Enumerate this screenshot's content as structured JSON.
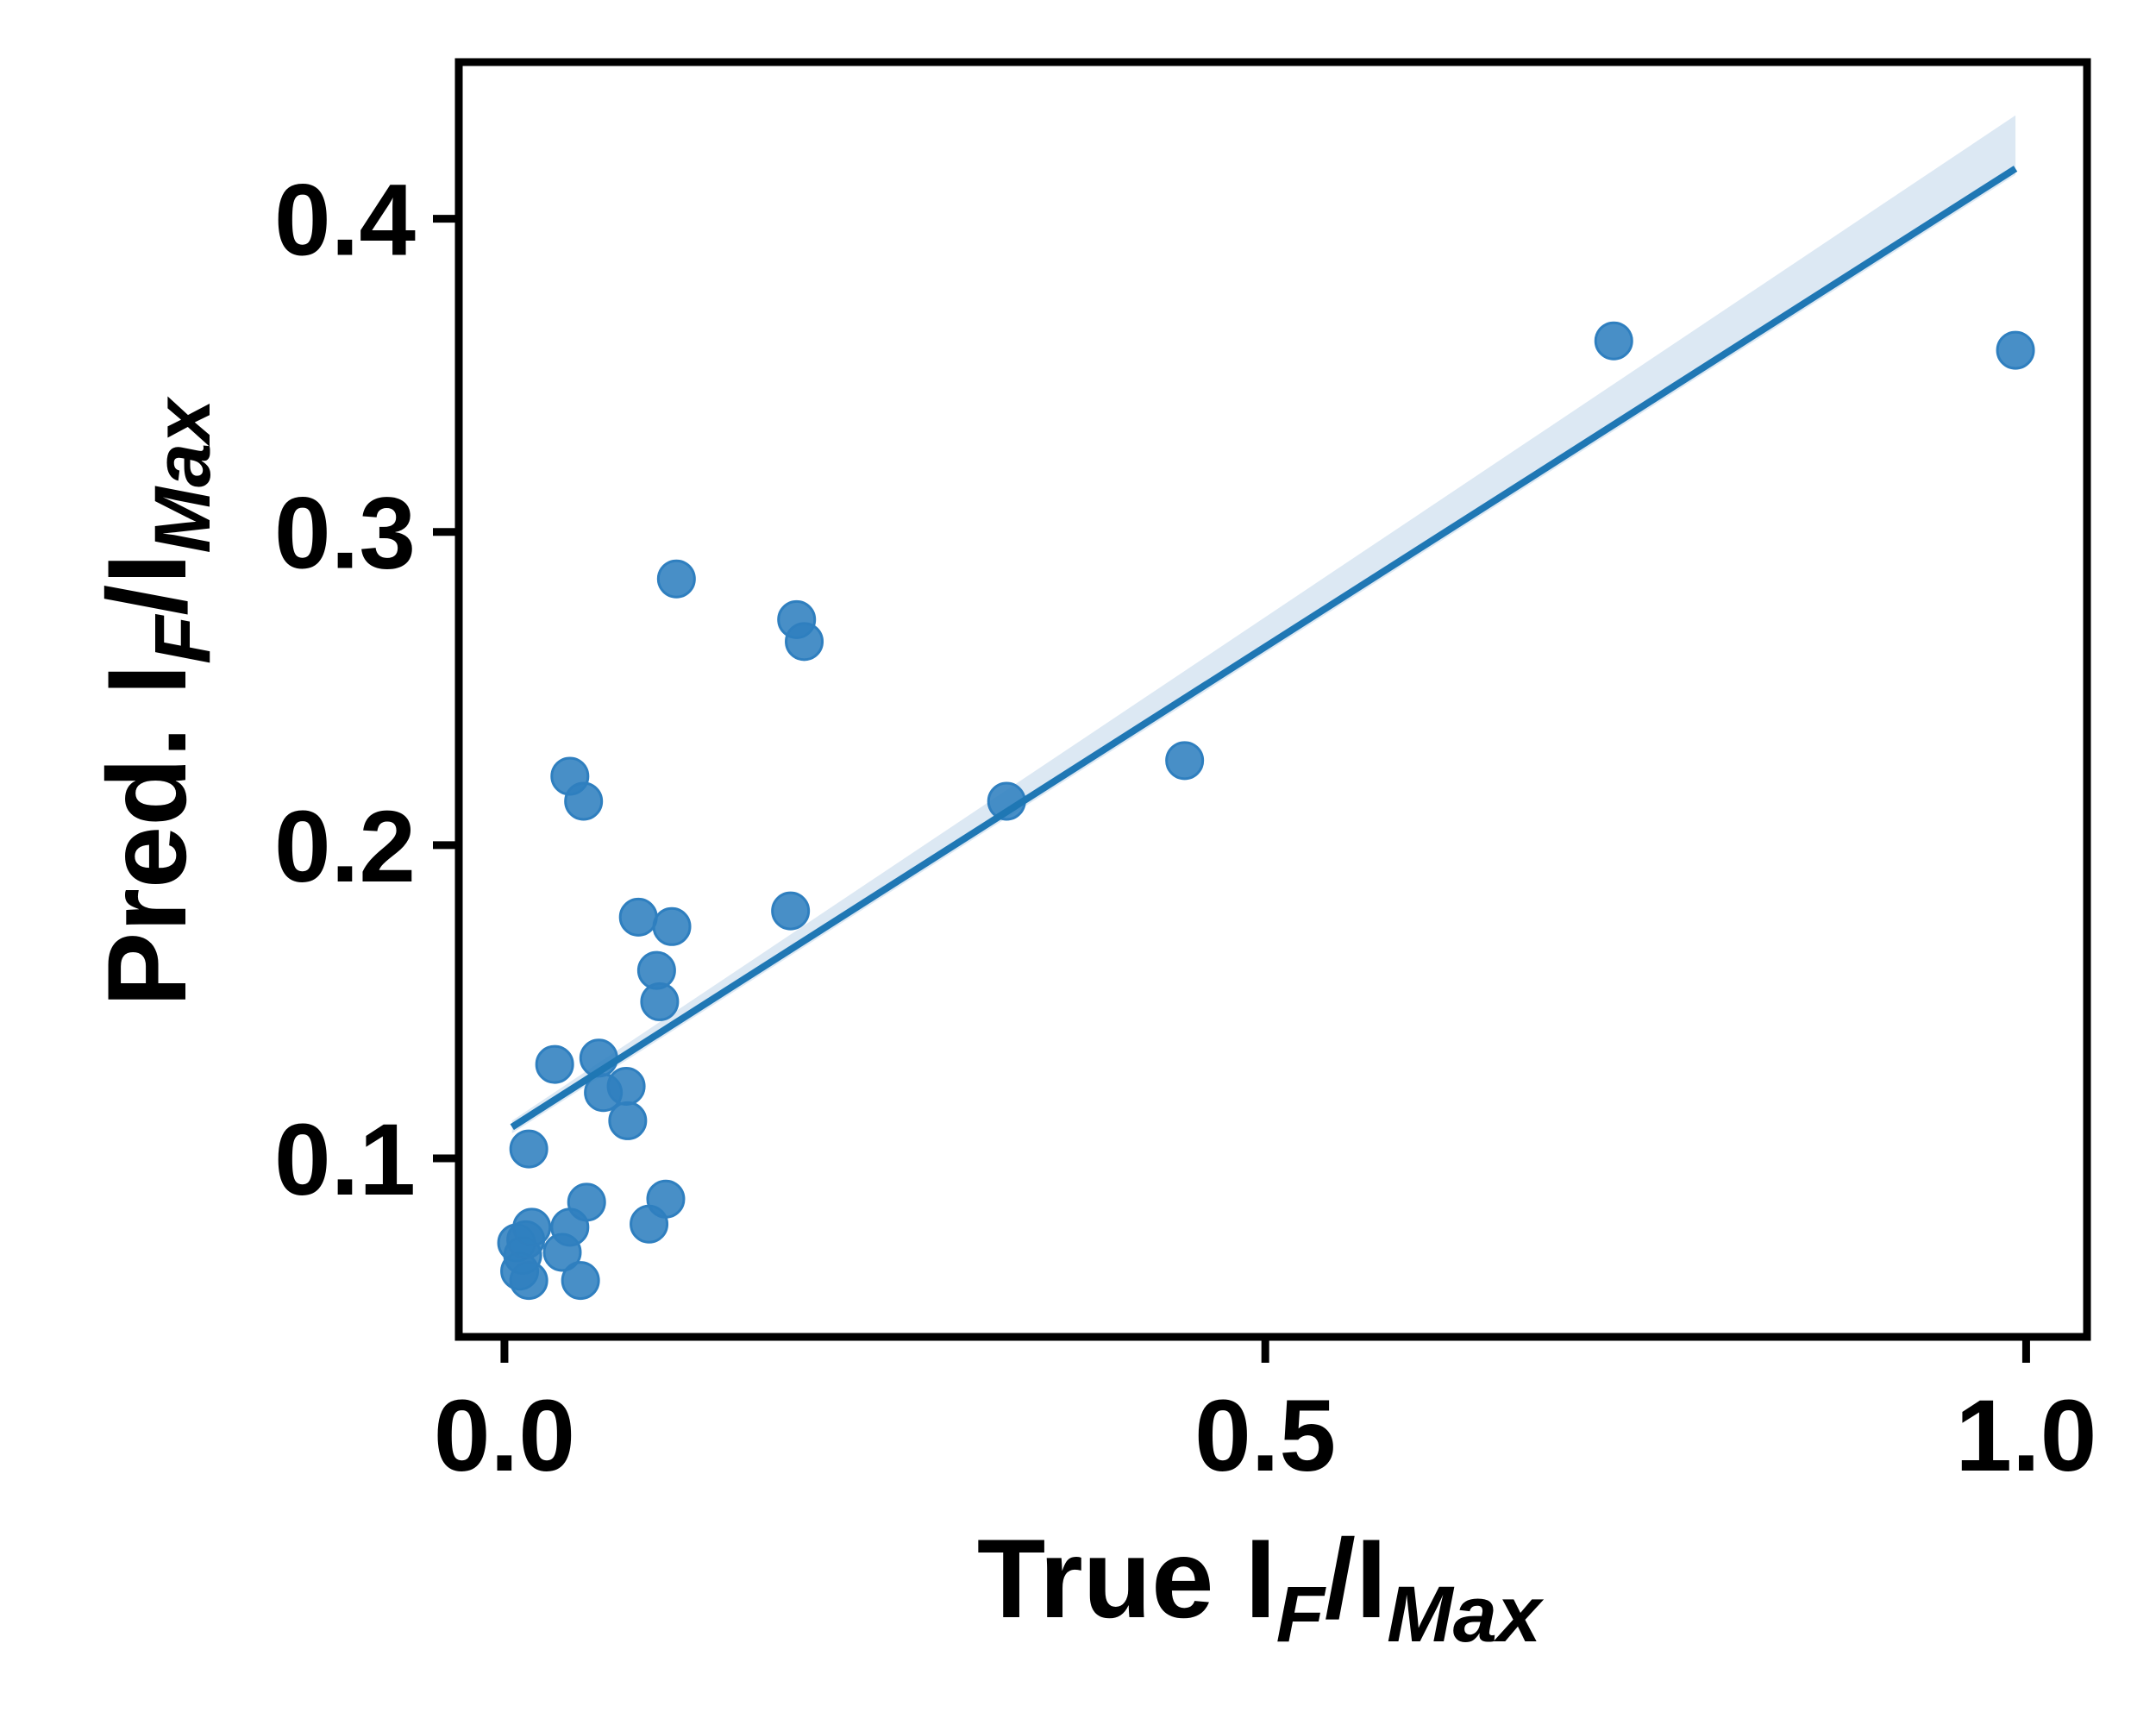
{
  "chart_data": {
    "type": "scatter",
    "xlabel": {
      "main": "True I",
      "sub1": "F",
      "sep": "/I",
      "sub2": "Max"
    },
    "ylabel": {
      "main": "Pred. I",
      "sub1": "F",
      "sep": "/I",
      "sub2": "Max"
    },
    "xlim": [
      -0.03,
      1.04
    ],
    "ylim": [
      0.043,
      0.45
    ],
    "x_ticks": [
      {
        "value": 0.0,
        "label": "0.0"
      },
      {
        "value": 0.5,
        "label": "0.5"
      },
      {
        "value": 1.0,
        "label": "1.0"
      }
    ],
    "y_ticks": [
      {
        "value": 0.1,
        "label": "0.1"
      },
      {
        "value": 0.2,
        "label": "0.2"
      },
      {
        "value": 0.3,
        "label": "0.3"
      },
      {
        "value": 0.4,
        "label": "0.4"
      }
    ],
    "grid": false,
    "point_color": "#2f7fbf",
    "line_color": "#1f77b4",
    "band_color": "#dce8f3",
    "points": [
      {
        "x": 0.008,
        "y": 0.073
      },
      {
        "x": 0.01,
        "y": 0.064
      },
      {
        "x": 0.012,
        "y": 0.069
      },
      {
        "x": 0.014,
        "y": 0.074
      },
      {
        "x": 0.016,
        "y": 0.061
      },
      {
        "x": 0.016,
        "y": 0.103
      },
      {
        "x": 0.018,
        "y": 0.078
      },
      {
        "x": 0.033,
        "y": 0.13
      },
      {
        "x": 0.038,
        "y": 0.07
      },
      {
        "x": 0.043,
        "y": 0.078
      },
      {
        "x": 0.043,
        "y": 0.222
      },
      {
        "x": 0.05,
        "y": 0.061
      },
      {
        "x": 0.052,
        "y": 0.214
      },
      {
        "x": 0.054,
        "y": 0.086
      },
      {
        "x": 0.062,
        "y": 0.132
      },
      {
        "x": 0.065,
        "y": 0.121
      },
      {
        "x": 0.08,
        "y": 0.123
      },
      {
        "x": 0.081,
        "y": 0.112
      },
      {
        "x": 0.088,
        "y": 0.177
      },
      {
        "x": 0.095,
        "y": 0.079
      },
      {
        "x": 0.1,
        "y": 0.16
      },
      {
        "x": 0.102,
        "y": 0.15
      },
      {
        "x": 0.106,
        "y": 0.087
      },
      {
        "x": 0.11,
        "y": 0.174
      },
      {
        "x": 0.113,
        "y": 0.285
      },
      {
        "x": 0.188,
        "y": 0.179
      },
      {
        "x": 0.192,
        "y": 0.272
      },
      {
        "x": 0.197,
        "y": 0.265
      },
      {
        "x": 0.33,
        "y": 0.214
      },
      {
        "x": 0.447,
        "y": 0.227
      },
      {
        "x": 0.729,
        "y": 0.361
      },
      {
        "x": 0.993,
        "y": 0.358
      }
    ],
    "regression": {
      "x_start": 0.005,
      "y_start": 0.11,
      "x_end": 0.993,
      "y_end": 0.416,
      "band_upper_end": 0.433,
      "band_lower_end": 0.414,
      "band_upper_start": 0.112,
      "band_lower_start": 0.108
    }
  }
}
